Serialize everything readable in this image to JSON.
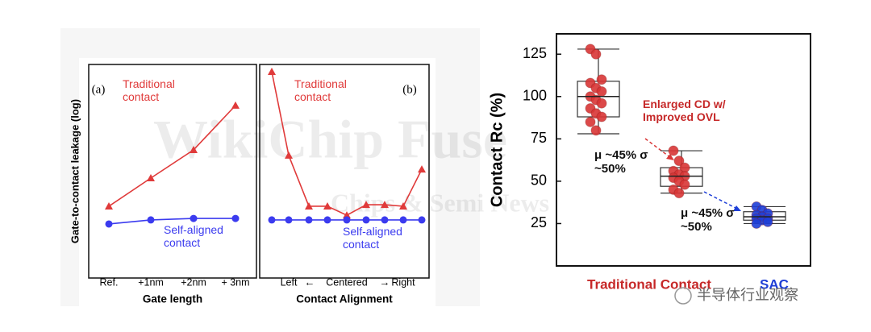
{
  "chart_data": [
    {
      "type": "line",
      "panel_label": "(a)",
      "ylabel": "Gate-to-contact leakage (log)",
      "xlabel": "Gate length",
      "categories": [
        "Ref.",
        "+1nm",
        "+2nm",
        "+ 3nm"
      ],
      "ylim": [
        0,
        100
      ],
      "series": [
        {
          "name": "Traditional contact",
          "color": "#e03a3a",
          "marker": "triangle",
          "values": [
            33.6,
            46.8,
            60,
            80.8
          ]
        },
        {
          "name": "Self-aligned contact",
          "color": "#3b3bef",
          "marker": "circle",
          "values": [
            25.3,
            27.2,
            27.9,
            27.9
          ]
        }
      ]
    },
    {
      "type": "line",
      "panel_label": "(b)",
      "xlabel": "Contact Alignment",
      "categories": [
        null,
        "Left",
        null,
        null,
        "Centered",
        null,
        null,
        "Right",
        null
      ],
      "arrows": [
        "←",
        "→"
      ],
      "ylim": [
        0,
        100
      ],
      "series": [
        {
          "name": "Traditional contact",
          "color": "#e03a3a",
          "marker": "triangle",
          "values": [
            96.6,
            57.4,
            33.6,
            33.6,
            29.4,
            34.3,
            34.3,
            33.6,
            50.9
          ]
        },
        {
          "name": "Self-aligned contact",
          "color": "#3b3bef",
          "marker": "circle",
          "values": [
            27.2,
            27.2,
            27.2,
            27.2,
            27.2,
            27.2,
            27.2,
            27.2,
            27.2
          ]
        }
      ]
    },
    {
      "type": "box",
      "ylabel": "Contact Rc (%)",
      "ylim": [
        0,
        137
      ],
      "yticks": [
        25,
        50,
        75,
        100,
        125
      ],
      "categories": [
        "Traditional Contact",
        null,
        "SAC"
      ],
      "category_colors": [
        "#c62828",
        "#c62828",
        "#1f3fd6"
      ],
      "boxes": [
        {
          "color": "#d93636",
          "whislo": 78,
          "q1": 88,
          "med": 100,
          "q3": 109,
          "whishi": 128,
          "points": [
            128,
            125,
            110,
            108,
            105,
            103,
            100,
            98,
            96,
            93,
            90,
            88,
            85,
            80
          ]
        },
        {
          "color": "#d93636",
          "whislo": 43,
          "q1": 47,
          "med": 53,
          "q3": 58,
          "whishi": 68,
          "points": [
            68,
            62,
            58,
            56,
            54,
            53,
            52,
            50,
            48,
            45,
            43
          ]
        },
        {
          "color": "#1e3fd8",
          "whislo": 25,
          "q1": 27,
          "med": 29,
          "q3": 32,
          "whishi": 35,
          "points": [
            35,
            33,
            31,
            30,
            29,
            28,
            28,
            27,
            26,
            25
          ]
        }
      ],
      "annotations": [
        "Enlarged CD w/ Improved OVL",
        "μ ~45% σ ~50%",
        "μ ~45% σ ~50%"
      ]
    }
  ],
  "watermark": [
    "WikiChip Fuse",
    "Chips & Semi News"
  ],
  "footer": "半导体行业观察"
}
